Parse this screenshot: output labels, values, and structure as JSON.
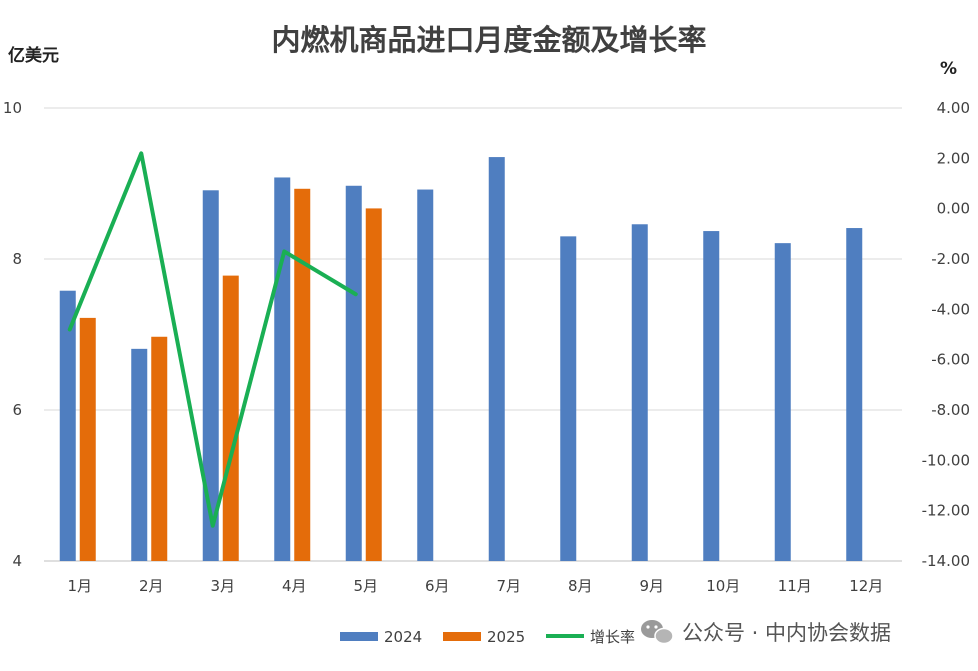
{
  "chart_data": {
    "type": "bar",
    "title": "内燃机商品进口月度金额及增长率",
    "ylabel": "亿美元",
    "y2label": "%",
    "categories": [
      "1月",
      "2月",
      "3月",
      "4月",
      "5月",
      "6月",
      "7月",
      "8月",
      "9月",
      "10月",
      "11月",
      "12月"
    ],
    "ylim": [
      4,
      10
    ],
    "yticks": [
      4,
      6,
      8,
      10
    ],
    "y2lim": [
      -14,
      4
    ],
    "y2ticks": [
      "4.00",
      "2.00",
      "0.00",
      "-2.00",
      "-4.00",
      "-6.00",
      "-8.00",
      "-10.00",
      "-12.00",
      "-14.00"
    ],
    "grid": true,
    "legend_position": "bottom",
    "series": [
      {
        "name": "2024",
        "type": "bar",
        "color": "#4F7EC0",
        "values": [
          7.58,
          6.81,
          8.91,
          9.08,
          8.97,
          8.92,
          9.35,
          8.3,
          8.46,
          8.37,
          8.21,
          8.41
        ]
      },
      {
        "name": "2025",
        "type": "bar",
        "color": "#E46C0A",
        "values": [
          7.22,
          6.97,
          7.78,
          8.93,
          8.67,
          null,
          null,
          null,
          null,
          null,
          null,
          null
        ]
      },
      {
        "name": "增长率",
        "type": "line",
        "axis": "right",
        "color": "#1AAF54",
        "values": [
          -4.8,
          2.2,
          -12.6,
          -1.7,
          -3.4,
          null,
          null,
          null,
          null,
          null,
          null,
          null
        ]
      }
    ]
  },
  "watermark": {
    "text": "公众号 · 中内协会数据",
    "icon": "wechat-icon"
  }
}
